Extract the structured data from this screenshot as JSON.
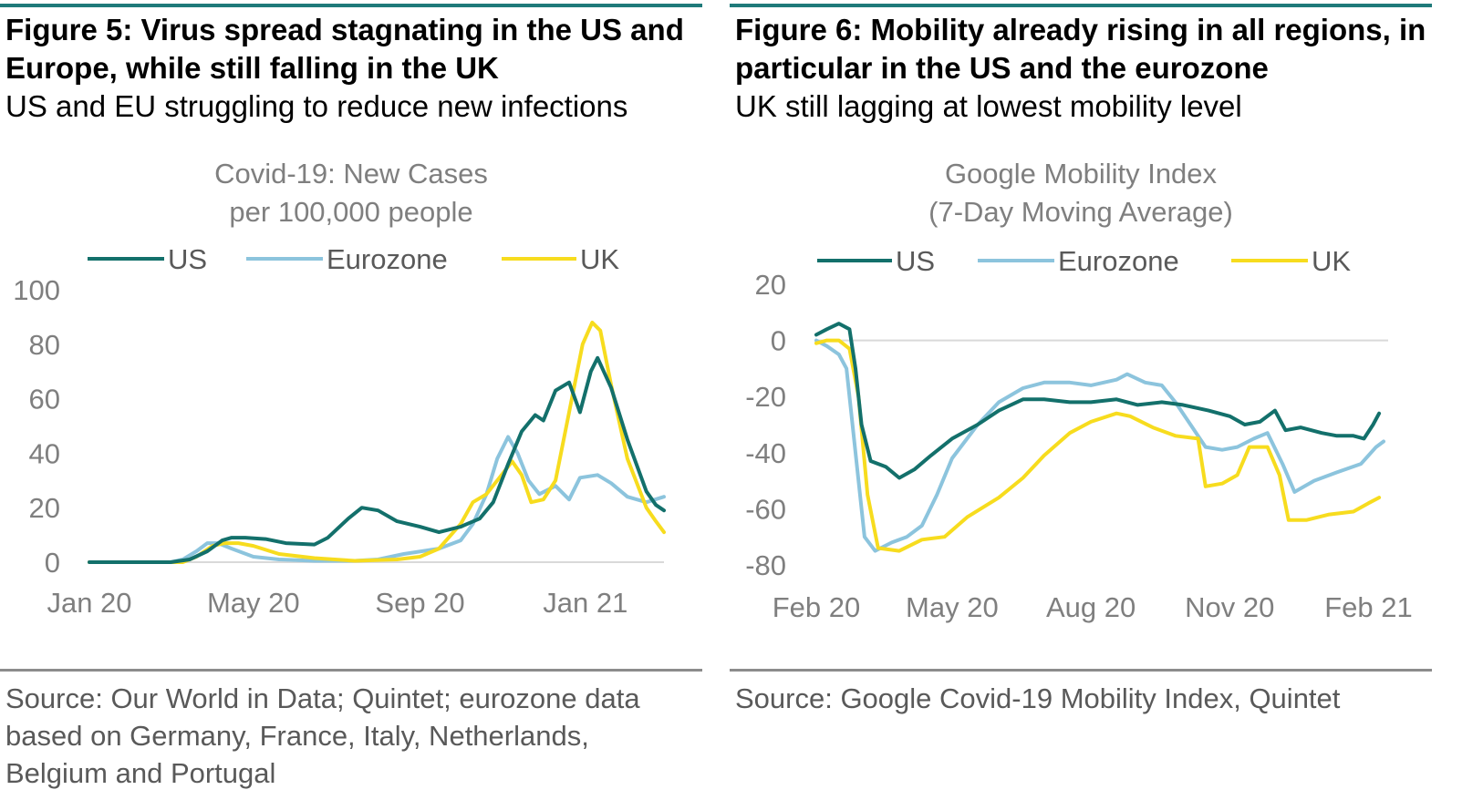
{
  "figures": [
    {
      "title": "Figure 5: Virus spread stagnating in the US and Europe, while still falling in the UK",
      "subtitle": "US and EU struggling to reduce new infections",
      "source": "Source: Our World in Data; Quintet; eurozone data based on Germany, France, Italy, Netherlands, Belgium and Portugal"
    },
    {
      "title": "Figure 6: Mobility already rising in all regions, in particular in the US and the eurozone",
      "subtitle": "UK still lagging at lowest mobility level",
      "source": "Source: Google Covid-19 Mobility Index, Quintet"
    }
  ],
  "colors": {
    "US": "#13706b",
    "Eurozone": "#8cc4dd",
    "UK": "#f7dc1e",
    "axis": "#d9d9d9",
    "rule": "#1f7a7a"
  },
  "chart_data": [
    {
      "type": "line",
      "title": [
        "Covid-19: New Cases",
        "per 100,000 people"
      ],
      "xlabel": "",
      "ylabel": "",
      "ylim": [
        0,
        100
      ],
      "yticks": [
        0,
        20,
        40,
        60,
        80,
        100
      ],
      "xlim": [
        "2020-01-01",
        "2021-02-28"
      ],
      "xticks": [
        {
          "date": "2020-01-01",
          "label": "Jan 20"
        },
        {
          "date": "2020-05-01",
          "label": "May 20"
        },
        {
          "date": "2020-09-01",
          "label": "Sep 20"
        },
        {
          "date": "2021-01-01",
          "label": "Jan 21"
        }
      ],
      "grid": false,
      "legend": "top",
      "series": [
        {
          "name": "US",
          "points": [
            [
              "2020-01-01",
              0
            ],
            [
              "2020-03-01",
              0
            ],
            [
              "2020-03-15",
              1
            ],
            [
              "2020-03-28",
              4
            ],
            [
              "2020-04-08",
              8
            ],
            [
              "2020-04-15",
              9
            ],
            [
              "2020-04-25",
              9
            ],
            [
              "2020-05-10",
              8.5
            ],
            [
              "2020-05-25",
              7
            ],
            [
              "2020-06-15",
              6.5
            ],
            [
              "2020-06-25",
              9
            ],
            [
              "2020-07-10",
              16
            ],
            [
              "2020-07-20",
              20
            ],
            [
              "2020-08-01",
              19
            ],
            [
              "2020-08-15",
              15
            ],
            [
              "2020-09-01",
              13
            ],
            [
              "2020-09-15",
              11
            ],
            [
              "2020-10-01",
              13
            ],
            [
              "2020-10-15",
              16
            ],
            [
              "2020-10-25",
              22
            ],
            [
              "2020-11-05",
              36
            ],
            [
              "2020-11-15",
              48
            ],
            [
              "2020-11-25",
              54
            ],
            [
              "2020-12-01",
              52
            ],
            [
              "2020-12-10",
              63
            ],
            [
              "2020-12-20",
              66
            ],
            [
              "2020-12-28",
              55
            ],
            [
              "2021-01-05",
              70
            ],
            [
              "2021-01-10",
              75
            ],
            [
              "2021-01-20",
              64
            ],
            [
              "2021-02-01",
              45
            ],
            [
              "2021-02-15",
              26
            ],
            [
              "2021-02-22",
              21
            ],
            [
              "2021-02-28",
              19
            ]
          ]
        },
        {
          "name": "Eurozone",
          "points": [
            [
              "2020-01-01",
              0
            ],
            [
              "2020-03-01",
              0
            ],
            [
              "2020-03-10",
              1
            ],
            [
              "2020-03-20",
              4
            ],
            [
              "2020-03-28",
              7
            ],
            [
              "2020-04-05",
              7
            ],
            [
              "2020-04-15",
              5
            ],
            [
              "2020-05-01",
              2
            ],
            [
              "2020-05-20",
              1
            ],
            [
              "2020-06-15",
              0.5
            ],
            [
              "2020-07-15",
              0.5
            ],
            [
              "2020-08-01",
              1
            ],
            [
              "2020-08-20",
              3
            ],
            [
              "2020-09-15",
              5
            ],
            [
              "2020-10-01",
              8
            ],
            [
              "2020-10-10",
              14
            ],
            [
              "2020-10-20",
              25
            ],
            [
              "2020-10-28",
              38
            ],
            [
              "2020-11-05",
              46
            ],
            [
              "2020-11-12",
              40
            ],
            [
              "2020-11-20",
              30
            ],
            [
              "2020-11-28",
              25
            ],
            [
              "2020-12-10",
              28
            ],
            [
              "2020-12-20",
              23
            ],
            [
              "2020-12-28",
              31
            ],
            [
              "2021-01-10",
              32
            ],
            [
              "2021-01-20",
              29
            ],
            [
              "2021-02-01",
              24
            ],
            [
              "2021-02-15",
              22
            ],
            [
              "2021-02-28",
              24
            ]
          ]
        },
        {
          "name": "UK",
          "points": [
            [
              "2020-01-01",
              0
            ],
            [
              "2020-03-10",
              0
            ],
            [
              "2020-03-20",
              2
            ],
            [
              "2020-04-01",
              6
            ],
            [
              "2020-04-10",
              7
            ],
            [
              "2020-04-20",
              7
            ],
            [
              "2020-05-01",
              6
            ],
            [
              "2020-05-20",
              3
            ],
            [
              "2020-06-15",
              1.5
            ],
            [
              "2020-07-15",
              0.5
            ],
            [
              "2020-08-15",
              1
            ],
            [
              "2020-09-01",
              2
            ],
            [
              "2020-09-15",
              5
            ],
            [
              "2020-10-01",
              14
            ],
            [
              "2020-10-10",
              22
            ],
            [
              "2020-10-20",
              25
            ],
            [
              "2020-10-28",
              30
            ],
            [
              "2020-11-08",
              37
            ],
            [
              "2020-11-15",
              32
            ],
            [
              "2020-11-22",
              22
            ],
            [
              "2020-12-01",
              23
            ],
            [
              "2020-12-10",
              30
            ],
            [
              "2020-12-20",
              55
            ],
            [
              "2020-12-30",
              80
            ],
            [
              "2021-01-06",
              88
            ],
            [
              "2021-01-12",
              85
            ],
            [
              "2021-01-20",
              65
            ],
            [
              "2021-02-01",
              38
            ],
            [
              "2021-02-15",
              20
            ],
            [
              "2021-02-22",
              15
            ],
            [
              "2021-02-28",
              11
            ]
          ]
        }
      ]
    },
    {
      "type": "line",
      "title": [
        "Google Mobility Index",
        "(7-Day Moving Average)"
      ],
      "xlabel": "",
      "ylabel": "",
      "ylim": [
        -80,
        20
      ],
      "yticks": [
        -80,
        -60,
        -40,
        -20,
        0,
        20
      ],
      "xlim": [
        "2020-02-15",
        "2021-02-28"
      ],
      "xticks": [
        {
          "date": "2020-02-15",
          "label": "Feb 20"
        },
        {
          "date": "2020-05-15",
          "label": "May 20"
        },
        {
          "date": "2020-08-15",
          "label": "Aug 20"
        },
        {
          "date": "2020-11-15",
          "label": "Nov 20"
        },
        {
          "date": "2021-02-15",
          "label": "Feb 21"
        }
      ],
      "grid": false,
      "legend": "top",
      "series": [
        {
          "name": "US",
          "points": [
            [
              "2020-02-15",
              2
            ],
            [
              "2020-02-22",
              4
            ],
            [
              "2020-03-01",
              6
            ],
            [
              "2020-03-08",
              4
            ],
            [
              "2020-03-12",
              -10
            ],
            [
              "2020-03-16",
              -30
            ],
            [
              "2020-03-22",
              -43
            ],
            [
              "2020-04-01",
              -45
            ],
            [
              "2020-04-10",
              -49
            ],
            [
              "2020-04-20",
              -46
            ],
            [
              "2020-05-01",
              -41
            ],
            [
              "2020-05-15",
              -35
            ],
            [
              "2020-06-01",
              -30
            ],
            [
              "2020-06-15",
              -25
            ],
            [
              "2020-07-01",
              -21
            ],
            [
              "2020-07-15",
              -21
            ],
            [
              "2020-08-01",
              -22
            ],
            [
              "2020-08-15",
              -22
            ],
            [
              "2020-09-01",
              -21
            ],
            [
              "2020-09-15",
              -23
            ],
            [
              "2020-10-01",
              -22
            ],
            [
              "2020-10-15",
              -23
            ],
            [
              "2020-11-01",
              -25
            ],
            [
              "2020-11-15",
              -27
            ],
            [
              "2020-11-25",
              -30
            ],
            [
              "2020-12-05",
              -29
            ],
            [
              "2020-12-15",
              -25
            ],
            [
              "2020-12-22",
              -32
            ],
            [
              "2021-01-01",
              -31
            ],
            [
              "2021-01-15",
              -33
            ],
            [
              "2021-01-25",
              -34
            ],
            [
              "2021-02-05",
              -34
            ],
            [
              "2021-02-12",
              -35
            ],
            [
              "2021-02-18",
              -30
            ],
            [
              "2021-02-22",
              -26
            ]
          ]
        },
        {
          "name": "Eurozone",
          "points": [
            [
              "2020-02-15",
              0
            ],
            [
              "2020-02-22",
              -2
            ],
            [
              "2020-03-01",
              -5
            ],
            [
              "2020-03-06",
              -10
            ],
            [
              "2020-03-12",
              -40
            ],
            [
              "2020-03-18",
              -70
            ],
            [
              "2020-03-25",
              -75
            ],
            [
              "2020-04-05",
              -72
            ],
            [
              "2020-04-15",
              -70
            ],
            [
              "2020-04-25",
              -66
            ],
            [
              "2020-05-05",
              -55
            ],
            [
              "2020-05-15",
              -42
            ],
            [
              "2020-06-01",
              -30
            ],
            [
              "2020-06-15",
              -22
            ],
            [
              "2020-07-01",
              -17
            ],
            [
              "2020-07-15",
              -15
            ],
            [
              "2020-08-01",
              -15
            ],
            [
              "2020-08-15",
              -16
            ],
            [
              "2020-09-01",
              -14
            ],
            [
              "2020-09-08",
              -12
            ],
            [
              "2020-09-20",
              -15
            ],
            [
              "2020-10-01",
              -16
            ],
            [
              "2020-10-10",
              -22
            ],
            [
              "2020-10-20",
              -30
            ],
            [
              "2020-10-30",
              -38
            ],
            [
              "2020-11-10",
              -39
            ],
            [
              "2020-11-20",
              -38
            ],
            [
              "2020-12-01",
              -35
            ],
            [
              "2020-12-10",
              -33
            ],
            [
              "2020-12-20",
              -44
            ],
            [
              "2020-12-28",
              -54
            ],
            [
              "2021-01-10",
              -50
            ],
            [
              "2021-01-25",
              -47
            ],
            [
              "2021-02-10",
              -44
            ],
            [
              "2021-02-20",
              -38
            ],
            [
              "2021-02-25",
              -36
            ]
          ]
        },
        {
          "name": "UK",
          "points": [
            [
              "2020-02-15",
              -1
            ],
            [
              "2020-02-22",
              0
            ],
            [
              "2020-03-01",
              0
            ],
            [
              "2020-03-08",
              -3
            ],
            [
              "2020-03-14",
              -20
            ],
            [
              "2020-03-20",
              -55
            ],
            [
              "2020-03-27",
              -74
            ],
            [
              "2020-04-10",
              -75
            ],
            [
              "2020-04-25",
              -71
            ],
            [
              "2020-05-10",
              -70
            ],
            [
              "2020-05-25",
              -63
            ],
            [
              "2020-06-15",
              -56
            ],
            [
              "2020-07-01",
              -49
            ],
            [
              "2020-07-15",
              -41
            ],
            [
              "2020-08-01",
              -33
            ],
            [
              "2020-08-15",
              -29
            ],
            [
              "2020-09-01",
              -26
            ],
            [
              "2020-09-10",
              -27
            ],
            [
              "2020-09-25",
              -31
            ],
            [
              "2020-10-10",
              -34
            ],
            [
              "2020-10-25",
              -35
            ],
            [
              "2020-10-30",
              -52
            ],
            [
              "2020-11-10",
              -51
            ],
            [
              "2020-11-20",
              -48
            ],
            [
              "2020-11-28",
              -38
            ],
            [
              "2020-12-10",
              -38
            ],
            [
              "2020-12-18",
              -48
            ],
            [
              "2020-12-24",
              -64
            ],
            [
              "2021-01-05",
              -64
            ],
            [
              "2021-01-20",
              -62
            ],
            [
              "2021-02-05",
              -61
            ],
            [
              "2021-02-15",
              -58
            ],
            [
              "2021-02-22",
              -56
            ]
          ]
        }
      ]
    }
  ]
}
